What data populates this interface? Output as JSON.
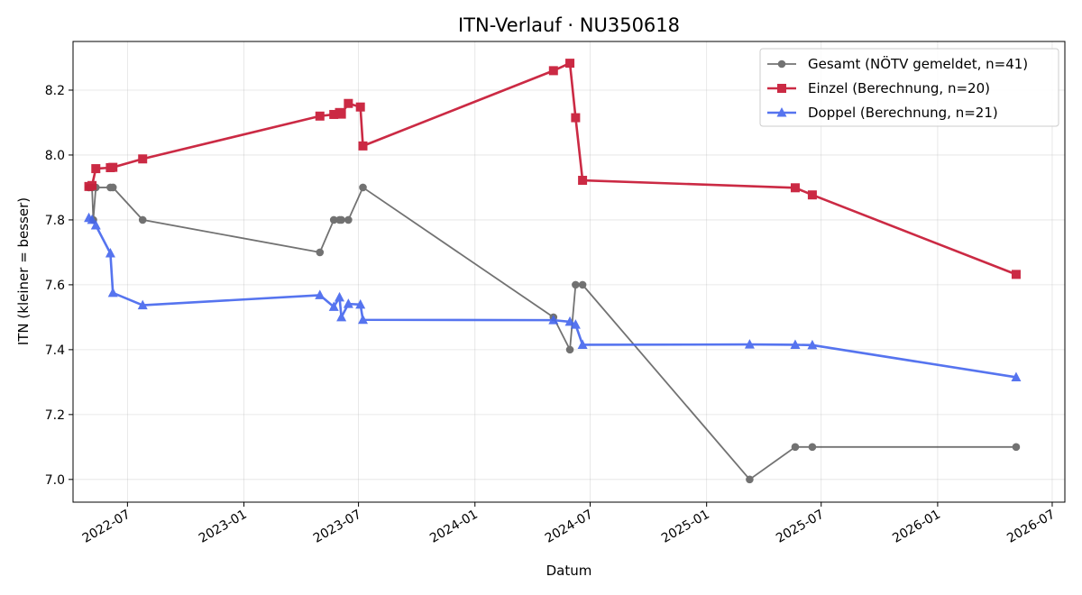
{
  "chart_data": {
    "type": "line",
    "title": "ITN-Verlauf · NU350618",
    "xlabel": "Datum",
    "ylabel": "ITN  (kleiner = besser)",
    "x_axis": "date",
    "xlim": [
      "2022-04-06",
      "2026-07-21"
    ],
    "ylim": [
      6.93,
      8.35
    ],
    "yticks": [
      7.0,
      7.2,
      7.4,
      7.6,
      7.8,
      8.0,
      8.2
    ],
    "ytick_labels": [
      "7.0",
      "7.2",
      "7.4",
      "7.6",
      "7.8",
      "8.0",
      "8.2"
    ],
    "xticks": [
      "2022-07-01",
      "2023-01-01",
      "2023-07-01",
      "2024-01-01",
      "2024-07-01",
      "2025-01-01",
      "2025-07-01",
      "2026-01-01",
      "2026-07-01"
    ],
    "xtick_labels": [
      "2022-07",
      "2023-01",
      "2023-07",
      "2024-01",
      "2024-07",
      "2025-01",
      "2025-07",
      "2026-01",
      "2026-07"
    ],
    "grid": true,
    "legend_position": "top-right",
    "series": [
      {
        "name": "Gesamt (NÖTV gemeldet, n=41)",
        "color": "#444444",
        "marker": "circle",
        "points": [
          {
            "x": "2022-05-01",
            "y": 7.9
          },
          {
            "x": "2022-05-06",
            "y": 7.9
          },
          {
            "x": "2022-05-08",
            "y": 7.8
          },
          {
            "x": "2022-05-12",
            "y": 7.9
          },
          {
            "x": "2022-06-04",
            "y": 7.9
          },
          {
            "x": "2022-06-08",
            "y": 7.9
          },
          {
            "x": "2022-07-25",
            "y": 7.8
          },
          {
            "x": "2023-05-01",
            "y": 7.7
          },
          {
            "x": "2023-05-23",
            "y": 7.8
          },
          {
            "x": "2023-06-01",
            "y": 7.8
          },
          {
            "x": "2023-06-04",
            "y": 7.8
          },
          {
            "x": "2023-06-15",
            "y": 7.8
          },
          {
            "x": "2023-07-08",
            "y": 7.9
          },
          {
            "x": "2024-05-04",
            "y": 7.5
          },
          {
            "x": "2024-05-30",
            "y": 7.4
          },
          {
            "x": "2024-06-08",
            "y": 7.6
          },
          {
            "x": "2024-06-19",
            "y": 7.6
          },
          {
            "x": "2025-03-10",
            "y": 7.0
          },
          {
            "x": "2025-05-21",
            "y": 7.1
          },
          {
            "x": "2025-06-17",
            "y": 7.1
          },
          {
            "x": "2026-05-05",
            "y": 7.1
          }
        ]
      },
      {
        "name": "Einzel (Berechnung, n=20)",
        "color": "#C91F3A",
        "marker": "square",
        "points": [
          {
            "x": "2022-05-01",
            "y": 7.903
          },
          {
            "x": "2022-05-06",
            "y": 7.906
          },
          {
            "x": "2022-05-12",
            "y": 7.958
          },
          {
            "x": "2022-06-04",
            "y": 7.961
          },
          {
            "x": "2022-06-08",
            "y": 7.962
          },
          {
            "x": "2022-07-25",
            "y": 7.988
          },
          {
            "x": "2023-05-01",
            "y": 8.12
          },
          {
            "x": "2023-05-23",
            "y": 8.125
          },
          {
            "x": "2023-06-01",
            "y": 8.131
          },
          {
            "x": "2023-06-04",
            "y": 8.126
          },
          {
            "x": "2023-06-15",
            "y": 8.159
          },
          {
            "x": "2023-07-04",
            "y": 8.148
          },
          {
            "x": "2023-07-08",
            "y": 8.028
          },
          {
            "x": "2024-05-04",
            "y": 8.26
          },
          {
            "x": "2024-05-30",
            "y": 8.283
          },
          {
            "x": "2024-06-08",
            "y": 8.115
          },
          {
            "x": "2024-06-19",
            "y": 7.922
          },
          {
            "x": "2025-05-21",
            "y": 7.899
          },
          {
            "x": "2025-06-17",
            "y": 7.877
          },
          {
            "x": "2026-05-05",
            "y": 7.632
          }
        ]
      },
      {
        "name": "Doppel (Berechnung, n=21)",
        "color": "#4466EE",
        "marker": "triangle",
        "points": [
          {
            "x": "2022-05-01",
            "y": 7.806
          },
          {
            "x": "2022-05-06",
            "y": 7.8
          },
          {
            "x": "2022-05-12",
            "y": 7.783
          },
          {
            "x": "2022-06-04",
            "y": 7.697
          },
          {
            "x": "2022-06-08",
            "y": 7.575
          },
          {
            "x": "2022-07-25",
            "y": 7.537
          },
          {
            "x": "2023-05-01",
            "y": 7.568
          },
          {
            "x": "2023-05-23",
            "y": 7.532
          },
          {
            "x": "2023-06-01",
            "y": 7.561
          },
          {
            "x": "2023-06-04",
            "y": 7.5
          },
          {
            "x": "2023-06-15",
            "y": 7.541
          },
          {
            "x": "2023-07-04",
            "y": 7.539
          },
          {
            "x": "2023-07-08",
            "y": 7.492
          },
          {
            "x": "2024-05-04",
            "y": 7.491
          },
          {
            "x": "2024-05-30",
            "y": 7.486
          },
          {
            "x": "2024-06-08",
            "y": 7.477
          },
          {
            "x": "2024-06-19",
            "y": 7.415
          },
          {
            "x": "2025-03-10",
            "y": 7.416
          },
          {
            "x": "2025-05-21",
            "y": 7.415
          },
          {
            "x": "2025-06-17",
            "y": 7.414
          },
          {
            "x": "2026-05-05",
            "y": 7.315
          }
        ]
      }
    ]
  }
}
